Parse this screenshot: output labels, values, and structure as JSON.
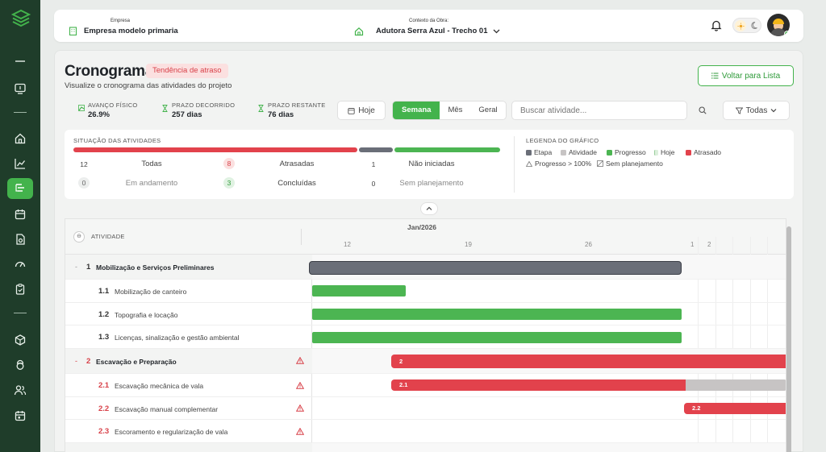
{
  "header": {
    "empresa_label": "Empresa",
    "empresa_value": "Empresa modelo primaria",
    "contexto_label": "Contexto da Obra:",
    "contexto_value": "Adutora Serra Azul - Trecho 01"
  },
  "page": {
    "title": "Cronograma",
    "badge": "Tendência de atraso",
    "subtitle": "Visualize o cronograma das atividades do projeto",
    "back_button": "Voltar para Lista"
  },
  "stats": [
    {
      "label": "AVANÇO FÍSICO",
      "value": "26.9%"
    },
    {
      "label": "PRAZO DECORRIDO",
      "value": "257 dias"
    },
    {
      "label": "PRAZO RESTANTE",
      "value": "76 dias"
    }
  ],
  "toolbar": {
    "today_button": "Hoje",
    "views": [
      "Semana",
      "Mês",
      "Geral"
    ],
    "active_view": "Semana",
    "search_placeholder": "Buscar atividade...",
    "filter_button": "Todas"
  },
  "situation": {
    "title": "SITUAÇÃO DAS ATIVIDADES",
    "items": [
      {
        "count": "12",
        "label": "Todas"
      },
      {
        "count": "8",
        "label": "Atrasadas"
      },
      {
        "count": "1",
        "label": "Não iniciadas"
      },
      {
        "count": "0",
        "label": "Em andamento"
      },
      {
        "count": "3",
        "label": "Concluídas"
      },
      {
        "count": "0",
        "label": "Sem planejamento"
      }
    ],
    "bar_segments": [
      {
        "status": "Atrasadas",
        "fraction": 0.6667,
        "color": "#e2424c"
      },
      {
        "status": "Não iniciadas",
        "fraction": 0.0833,
        "color": "#6a6e78"
      },
      {
        "status": "Concluídas",
        "fraction": 0.25,
        "color": "#4cb552"
      }
    ]
  },
  "legend": {
    "title": "LEGENDA DO GRÁFICO",
    "items": [
      {
        "label": "Etapa",
        "color": "#6a6e78"
      },
      {
        "label": "Atividade",
        "color": "#c7c4c4"
      },
      {
        "label": "Progresso",
        "color": "#4cb552"
      },
      {
        "label": "Hoje",
        "color": "#c8e6c9"
      },
      {
        "label": "Atrasado",
        "color": "#e2424c"
      }
    ],
    "notes": [
      "Progresso > 100%",
      "Sem planejamento"
    ]
  },
  "gantt": {
    "column_header": "ATIVIDADE",
    "month": "Jan/2026",
    "ticks": [
      "12",
      "19",
      "26",
      "1",
      "2"
    ],
    "rows": [
      {
        "num": "1",
        "name": "Mobilização e Serviços Preliminares",
        "stage": true,
        "late": false
      },
      {
        "num": "1.1",
        "name": "Mobilização de canteiro",
        "stage": false,
        "late": false
      },
      {
        "num": "1.2",
        "name": "Topografia e locação",
        "stage": false,
        "late": false
      },
      {
        "num": "1.3",
        "name": "Licenças, sinalização e gestão ambiental",
        "stage": false,
        "late": false
      },
      {
        "num": "2",
        "name": "Escavação e Preparação",
        "stage": true,
        "late": true
      },
      {
        "num": "2.1",
        "name": "Escavação mecânica de vala",
        "stage": false,
        "late": true
      },
      {
        "num": "2.2",
        "name": "Escavação manual complementar",
        "stage": false,
        "late": true
      },
      {
        "num": "2.3",
        "name": "Escoramento e regularização de vala",
        "stage": false,
        "late": true
      }
    ],
    "bar_labels": {
      "stage2": "2",
      "act21": "2.1",
      "act22": "2.2"
    }
  }
}
